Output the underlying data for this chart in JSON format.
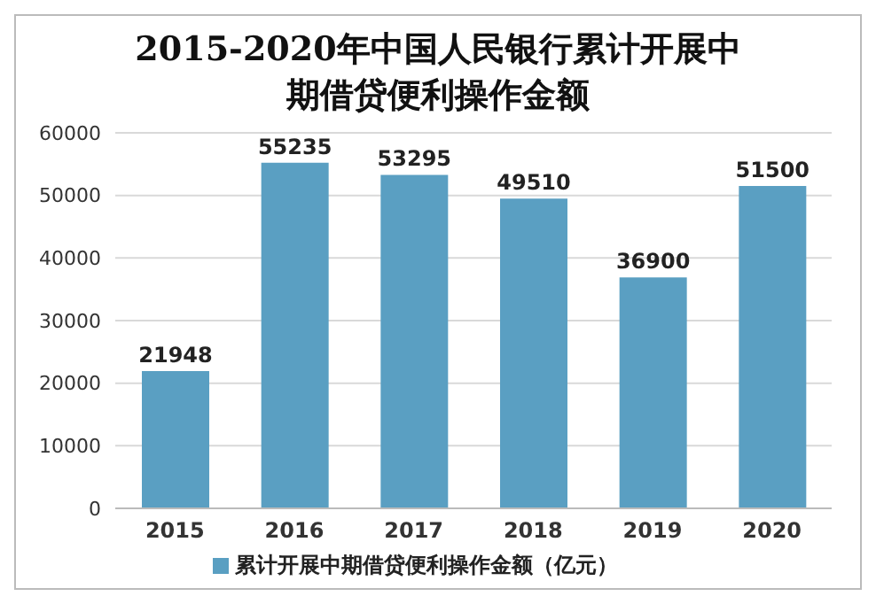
{
  "chart_data": {
    "type": "bar",
    "title": "2015-2020年中国人民银行累计开展中期借贷便利操作金额",
    "categories": [
      "2015",
      "2016",
      "2017",
      "2018",
      "2019",
      "2020"
    ],
    "series": [
      {
        "name": "累计开展中期借贷便利操作金额（亿元）",
        "color": "#5a9fc2",
        "values": [
          21948,
          55235,
          53295,
          49510,
          36900,
          51500
        ]
      }
    ],
    "ylim": [
      0,
      60000
    ],
    "yticks": [
      0,
      10000,
      20000,
      30000,
      40000,
      50000,
      60000
    ],
    "grid": "y",
    "legend": "bottom",
    "data_labels": true
  }
}
